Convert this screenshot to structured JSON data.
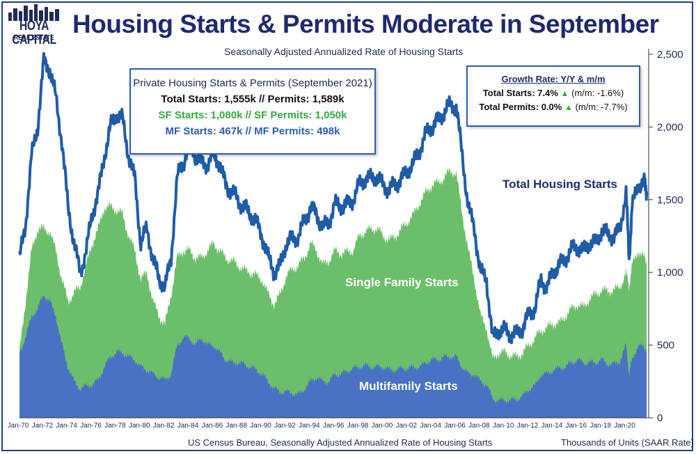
{
  "logo": {
    "name": "HOYA CAPITAL",
    "sub": "REAL ESTATE"
  },
  "colors": {
    "total": "#1f5ca8",
    "single_family": "#6cbf6a",
    "multifamily": "#4a72c4",
    "title": "#1e2a6e"
  },
  "info_box": {
    "header": "Private Housing Starts & Permits (September 2021)",
    "line_total": "Total Starts: 1,555k // Permits: 1,589k",
    "line_sf": "SF Starts:  1,080k // SF Permits: 1,050k",
    "line_mf": "MF Starts: 467k // MF Permits: 498k"
  },
  "growth_box": {
    "header": "Growth Rate: Y/Y & m/m",
    "total_starts_label": "Total Starts: 7.4%",
    "total_starts_mm": "(m/m: -1.6%)",
    "total_permits_label": "Total Permits:  0.0%",
    "total_permits_mm": "(m/m: -7.7%)",
    "arrow": "▲"
  },
  "labels": {
    "total": "Total Housing Starts",
    "single_family": "Single Family Starts",
    "multifamily": "Multifamily Starts"
  },
  "footer": {
    "source": "US Census Bureau, Seasonally Adjusted Annualized Rate of Housing Starts",
    "units": "Thousands of Units (SAAR Rate)"
  },
  "chart_data": {
    "type": "area",
    "title": "Housing Starts & Permits Moderate in September",
    "subtitle": "Seasonally Adjusted Annualized Rate of Housing Starts",
    "ylabel": "Thousands of Units (SAAR Rate)",
    "ylim": [
      0,
      2500
    ],
    "y_ticks": [
      0,
      500,
      "1,000",
      "1,500",
      "2,000",
      "2,500"
    ],
    "x_ticks": [
      "Jan-70",
      "Jan-72",
      "Jan-74",
      "Jan-76",
      "Jan-78",
      "Jan-80",
      "Jan-82",
      "Jan-84",
      "Jan-86",
      "Jan-88",
      "Jan-90",
      "Jan-92",
      "Jan-94",
      "Jan-96",
      "Jan-98",
      "Jan-00",
      "Jan-02",
      "Jan-04",
      "Jan-06",
      "Jan-08",
      "Jan-10",
      "Jan-12",
      "Jan-14",
      "Jan-16",
      "Jan-18",
      "Jan-20"
    ],
    "x": [
      1970.0,
      1970.5,
      1971.0,
      1971.5,
      1972.0,
      1972.5,
      1973.0,
      1973.5,
      1974.0,
      1974.5,
      1975.0,
      1975.5,
      1976.0,
      1976.5,
      1977.0,
      1977.5,
      1978.0,
      1978.5,
      1979.0,
      1979.5,
      1980.0,
      1980.5,
      1981.0,
      1981.5,
      1982.0,
      1982.5,
      1983.0,
      1983.5,
      1984.0,
      1984.5,
      1985.0,
      1985.5,
      1986.0,
      1986.5,
      1987.0,
      1987.5,
      1988.0,
      1988.5,
      1989.0,
      1989.5,
      1990.0,
      1990.5,
      1991.0,
      1991.5,
      1992.0,
      1992.5,
      1993.0,
      1993.5,
      1994.0,
      1994.5,
      1995.0,
      1995.5,
      1996.0,
      1996.5,
      1997.0,
      1997.5,
      1998.0,
      1998.5,
      1999.0,
      1999.5,
      2000.0,
      2000.5,
      2001.0,
      2001.5,
      2002.0,
      2002.5,
      2003.0,
      2003.5,
      2004.0,
      2004.5,
      2005.0,
      2005.5,
      2006.0,
      2006.5,
      2007.0,
      2007.5,
      2008.0,
      2008.5,
      2009.0,
      2009.5,
      2010.0,
      2010.5,
      2011.0,
      2011.5,
      2012.0,
      2012.5,
      2013.0,
      2013.5,
      2014.0,
      2014.5,
      2015.0,
      2015.5,
      2016.0,
      2016.5,
      2017.0,
      2017.5,
      2018.0,
      2018.5,
      2019.0,
      2019.5,
      2020.0,
      2020.25,
      2020.5,
      2021.0,
      2021.5,
      2021.7
    ],
    "series": [
      {
        "name": "Total Housing Starts",
        "values": [
          1090,
          1330,
          1800,
          2000,
          2450,
          2400,
          2200,
          1900,
          1450,
          1200,
          1000,
          1150,
          1400,
          1550,
          1800,
          2000,
          2100,
          2050,
          1800,
          1650,
          1200,
          1300,
          1100,
          950,
          900,
          1100,
          1650,
          1750,
          1900,
          1800,
          1750,
          1750,
          1800,
          1750,
          1600,
          1550,
          1500,
          1450,
          1400,
          1350,
          1250,
          1100,
          1000,
          1050,
          1200,
          1230,
          1250,
          1350,
          1450,
          1400,
          1300,
          1350,
          1470,
          1450,
          1470,
          1500,
          1600,
          1650,
          1650,
          1650,
          1600,
          1570,
          1600,
          1650,
          1700,
          1750,
          1850,
          1950,
          2000,
          2050,
          2100,
          2150,
          2150,
          1800,
          1450,
          1300,
          1000,
          950,
          550,
          600,
          600,
          580,
          570,
          620,
          720,
          750,
          950,
          900,
          1000,
          1050,
          1100,
          1150,
          1180,
          1150,
          1200,
          1200,
          1300,
          1250,
          1250,
          1300,
          1550,
          1100,
          1450,
          1600,
          1620,
          1555
        ]
      },
      {
        "name": "Single Family Starts",
        "values": [
          450,
          800,
          1150,
          1300,
          1300,
          1280,
          1150,
          950,
          800,
          860,
          900,
          1050,
          1200,
          1300,
          1450,
          1450,
          1430,
          1400,
          1250,
          1150,
          950,
          1000,
          800,
          700,
          640,
          850,
          1100,
          1150,
          1150,
          1100,
          1100,
          1150,
          1200,
          1150,
          1100,
          1080,
          1050,
          1020,
          1000,
          980,
          950,
          850,
          780,
          850,
          980,
          1020,
          1050,
          1100,
          1200,
          1150,
          1050,
          1080,
          1150,
          1130,
          1140,
          1150,
          1250,
          1280,
          1300,
          1300,
          1250,
          1220,
          1250,
          1300,
          1350,
          1400,
          1480,
          1550,
          1600,
          1620,
          1650,
          1700,
          1680,
          1400,
          1150,
          950,
          700,
          620,
          400,
          450,
          450,
          430,
          420,
          450,
          500,
          550,
          600,
          620,
          650,
          650,
          700,
          750,
          780,
          760,
          820,
          850,
          880,
          870,
          880,
          900,
          1000,
          900,
          1050,
          1150,
          1100,
          1080
        ]
      },
      {
        "name": "Multifamily Starts",
        "values": [
          450,
          550,
          700,
          750,
          850,
          800,
          700,
          500,
          350,
          250,
          200,
          220,
          230,
          260,
          350,
          420,
          450,
          450,
          420,
          400,
          350,
          330,
          300,
          280,
          260,
          300,
          500,
          550,
          550,
          500,
          550,
          500,
          500,
          450,
          400,
          380,
          380,
          370,
          350,
          330,
          300,
          250,
          200,
          180,
          180,
          170,
          160,
          200,
          250,
          280,
          250,
          250,
          300,
          300,
          320,
          340,
          350,
          360,
          350,
          350,
          350,
          330,
          330,
          340,
          340,
          350,
          350,
          380,
          400,
          400,
          420,
          420,
          420,
          350,
          300,
          300,
          250,
          230,
          130,
          120,
          120,
          120,
          130,
          150,
          200,
          220,
          300,
          300,
          330,
          340,
          350,
          380,
          400,
          380,
          380,
          380,
          400,
          370,
          370,
          390,
          500,
          300,
          400,
          500,
          480,
          467
        ]
      }
    ]
  }
}
